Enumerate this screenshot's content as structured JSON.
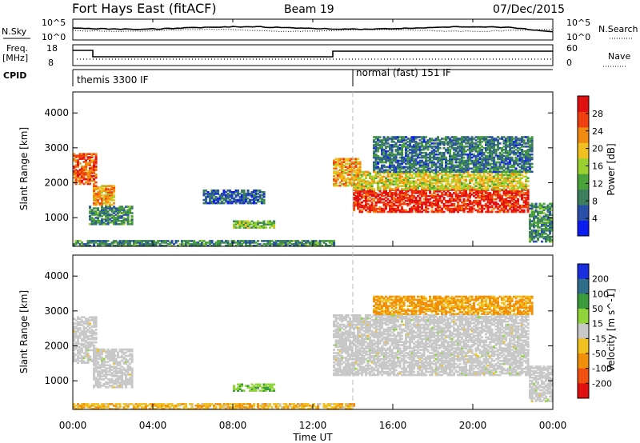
{
  "header": {
    "radar_title": "Fort Hays East (fitACF)",
    "beam": "Beam 19",
    "date": "07/Dec/2015"
  },
  "top_panels": {
    "nsky_label": "N.Sky",
    "nsky_ticks": [
      "10^5",
      "10^0"
    ],
    "nsearch_label": "N.Search",
    "nsearch_ticks": [
      "10^5",
      "10^0"
    ],
    "freq_label_1": "Freq.",
    "freq_label_2": "[MHz]",
    "freq_ticks": [
      "18",
      "8"
    ],
    "nave_label": "Nave",
    "nave_ticks": [
      "60",
      "0"
    ],
    "cpid_label": "CPID",
    "cpid_modes": [
      {
        "name": "themis 3300 IF",
        "start_hour": 0
      },
      {
        "name": "normal (fast) 151 IF",
        "start_hour": 14
      }
    ]
  },
  "x_axis": {
    "label": "Time UT",
    "ticks": [
      "00:00",
      "04:00",
      "08:00",
      "12:00",
      "16:00",
      "20:00",
      "00:00"
    ],
    "tick_hours": [
      0,
      4,
      8,
      12,
      16,
      20,
      24
    ],
    "range_hours": [
      0,
      24
    ]
  },
  "chart_data": [
    {
      "type": "heatmap",
      "name": "power",
      "ylabel": "Slant Range [km]",
      "yticks": [
        "1000",
        "2000",
        "3000",
        "4000"
      ],
      "ytick_values": [
        1000,
        2000,
        3000,
        4000
      ],
      "ylim": [
        180,
        4600
      ],
      "colorbar_label": "Power [dB]",
      "colorbar_ticks": [
        "4",
        "8",
        "12",
        "16",
        "20",
        "24",
        "28"
      ],
      "colorbar_values": [
        4,
        8,
        12,
        16,
        20,
        24,
        28
      ],
      "colorbar_range": [
        0,
        32
      ],
      "colors": [
        "#0a1cf0",
        "#2a4fa8",
        "#3d7f5c",
        "#4aa33a",
        "#9ad030",
        "#f0c020",
        "#f08a10",
        "#f04010",
        "#e01010"
      ],
      "regions": [
        {
          "t0": 0.0,
          "t1": 1.1,
          "r0": 1950,
          "r1": 2850,
          "v": 26
        },
        {
          "t0": 1.0,
          "t1": 2.1,
          "r0": 1350,
          "r1": 1900,
          "v": 22
        },
        {
          "t0": 0.8,
          "t1": 3.0,
          "r0": 800,
          "r1": 1300,
          "v": 10
        },
        {
          "t0": 8.0,
          "t1": 10.0,
          "r0": 700,
          "r1": 900,
          "v": 14
        },
        {
          "t0": 6.5,
          "t1": 9.5,
          "r0": 1400,
          "r1": 1800,
          "v": 6
        },
        {
          "t0": 13.0,
          "t1": 14.3,
          "r0": 1900,
          "r1": 2700,
          "v": 22
        },
        {
          "t0": 14.0,
          "t1": 22.8,
          "r0": 1150,
          "r1": 1800,
          "v": 29
        },
        {
          "t0": 14.0,
          "t1": 22.8,
          "r0": 1800,
          "r1": 2300,
          "v": 18
        },
        {
          "t0": 15.0,
          "t1": 23.0,
          "r0": 2300,
          "r1": 3300,
          "v": 8
        },
        {
          "t0": 22.8,
          "t1": 24.0,
          "r0": 300,
          "r1": 1400,
          "v": 10
        },
        {
          "t0": 0.0,
          "t1": 13.0,
          "r0": 180,
          "r1": 330,
          "v": 10
        }
      ]
    },
    {
      "type": "heatmap",
      "name": "velocity",
      "ylabel": "Slant Range [km]",
      "yticks": [
        "1000",
        "2000",
        "3000",
        "4000"
      ],
      "ytick_values": [
        1000,
        2000,
        3000,
        4000
      ],
      "ylim": [
        180,
        4600
      ],
      "colorbar_label": "Velocity [m s^-1]",
      "colorbar_ticks": [
        "200",
        "100",
        "50",
        "15",
        "-15",
        "-50",
        "-100",
        "-200"
      ],
      "colors": [
        "#1a2ee0",
        "#2e6e8a",
        "#3b9a3b",
        "#8fd43a",
        "#c8c8c8",
        "#f0c020",
        "#f0900a",
        "#f05010",
        "#e01010"
      ],
      "regions": [
        {
          "t0": 0.0,
          "t1": 1.1,
          "r0": 1500,
          "r1": 2850,
          "v": 0
        },
        {
          "t0": 1.0,
          "t1": 3.0,
          "r0": 800,
          "r1": 1900,
          "v": 0
        },
        {
          "t0": 8.0,
          "t1": 10.0,
          "r0": 700,
          "r1": 900,
          "v": 40
        },
        {
          "t0": 13.0,
          "t1": 22.8,
          "r0": 1150,
          "r1": 2900,
          "v": 0
        },
        {
          "t0": 15.0,
          "t1": 23.0,
          "r0": 2900,
          "r1": 3400,
          "v": -60
        },
        {
          "t0": 22.8,
          "t1": 24.0,
          "r0": 400,
          "r1": 1400,
          "v": 0
        },
        {
          "t0": 0.0,
          "t1": 14.0,
          "r0": 180,
          "r1": 330,
          "v": -40
        }
      ]
    }
  ]
}
